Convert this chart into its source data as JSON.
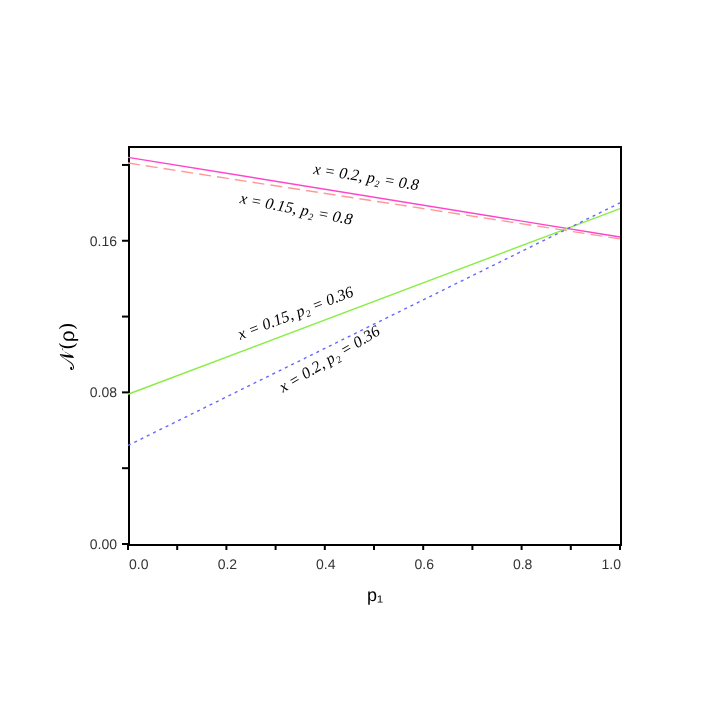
{
  "chart_data": {
    "type": "line",
    "xlabel": "p₁",
    "ylabel": "𝒩(ρ)",
    "x": [
      0,
      1
    ],
    "series": [
      {
        "color": "#ff44cc",
        "values": [
          0.204,
          0.162
        ],
        "line_style": "solid"
      },
      {
        "color": "#ff9999",
        "values": [
          0.201,
          0.161
        ],
        "line_style": "dashed"
      },
      {
        "color": "#88ee44",
        "values": [
          0.079,
          0.177
        ],
        "line_style": "solid"
      },
      {
        "color": "#6666ff",
        "values": [
          0.052,
          0.18
        ],
        "line_style": "dotted"
      }
    ],
    "xlim": [
      0,
      1
    ],
    "ylim": [
      0,
      0.21
    ],
    "xticks": [
      {
        "value": 0,
        "label": "0.0"
      },
      {
        "value": 0.1,
        "label": null
      },
      {
        "value": 0.2,
        "label": "0.2"
      },
      {
        "value": 0.3,
        "label": null
      },
      {
        "value": 0.4,
        "label": "0.4"
      },
      {
        "value": 0.5,
        "label": null
      },
      {
        "value": 0.6,
        "label": "0.6"
      },
      {
        "value": 0.7,
        "label": null
      },
      {
        "value": 0.8,
        "label": "0.8"
      },
      {
        "value": 0.9,
        "label": null
      },
      {
        "value": 1,
        "label": "1.0"
      }
    ],
    "yticks": [
      {
        "value": 0,
        "label": "0.00"
      },
      {
        "value": 0.04,
        "label": null
      },
      {
        "value": 0.08,
        "label": "0.08"
      },
      {
        "value": 0.12,
        "label": null
      },
      {
        "value": 0.16,
        "label": "0.16"
      },
      {
        "value": 0.2,
        "label": null
      }
    ],
    "annotations": [
      "x = 0.2, p₂ = 0.8",
      "x = 0.15, p₂ = 0.8",
      "x = 0.15, p₂ = 0.36",
      "x = 0.2, p₂ = 0.36"
    ],
    "grid": false,
    "marker": "none"
  }
}
